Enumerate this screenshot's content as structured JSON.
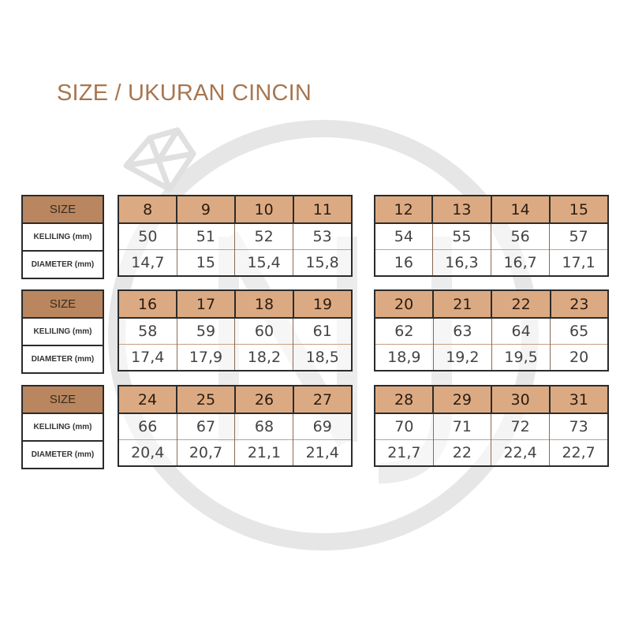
{
  "title": "SIZE / UKURAN CINCIN",
  "labels": {
    "size": "SIZE",
    "keliling": "KELILING (mm)",
    "diameter": "DIAMETER (mm)"
  },
  "colors": {
    "title": "#a8764f",
    "label_header": "#b9865f",
    "size_header": "#dcaa82",
    "watermark": "#e3e3e3"
  },
  "watermark": {
    "icon": "diamond-ring-logo-icon"
  },
  "tables": [
    {
      "size": [
        "8",
        "9",
        "10",
        "11"
      ],
      "keliling": [
        "50",
        "51",
        "52",
        "53"
      ],
      "diameter": [
        "14,7",
        "15",
        "15,4",
        "15,8"
      ]
    },
    {
      "size": [
        "12",
        "13",
        "14",
        "15"
      ],
      "keliling": [
        "54",
        "55",
        "56",
        "57"
      ],
      "diameter": [
        "16",
        "16,3",
        "16,7",
        "17,1"
      ]
    },
    {
      "size": [
        "16",
        "17",
        "18",
        "19"
      ],
      "keliling": [
        "58",
        "59",
        "60",
        "61"
      ],
      "diameter": [
        "17,4",
        "17,9",
        "18,2",
        "18,5"
      ]
    },
    {
      "size": [
        "20",
        "21",
        "22",
        "23"
      ],
      "keliling": [
        "62",
        "63",
        "64",
        "65"
      ],
      "diameter": [
        "18,9",
        "19,2",
        "19,5",
        "20"
      ]
    },
    {
      "size": [
        "24",
        "25",
        "26",
        "27"
      ],
      "keliling": [
        "66",
        "67",
        "68",
        "69"
      ],
      "diameter": [
        "20,4",
        "20,7",
        "21,1",
        "21,4"
      ]
    },
    {
      "size": [
        "28",
        "29",
        "30",
        "31"
      ],
      "keliling": [
        "70",
        "71",
        "72",
        "73"
      ],
      "diameter": [
        "21,7",
        "22",
        "22,4",
        "22,7"
      ]
    }
  ]
}
